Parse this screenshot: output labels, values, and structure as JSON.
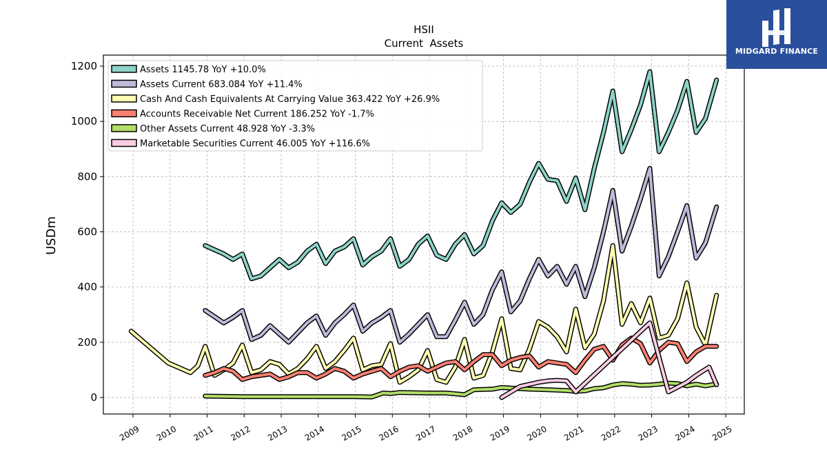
{
  "header": {
    "title": "HSII",
    "subtitle": "Current  Assets"
  },
  "brand": {
    "name": "MIDGARD FINANCE",
    "color": "#2a4f9c"
  },
  "chart_data": {
    "type": "line",
    "title": "HSII",
    "subtitle": "Current  Assets",
    "xlabel": "",
    "ylabel": "USDm",
    "xlim": [
      2008.2,
      2025.5
    ],
    "ylim": [
      -60,
      1240
    ],
    "x_ticks": [
      "2009",
      "2010",
      "2011",
      "2012",
      "2013",
      "2014",
      "2015",
      "2016",
      "2017",
      "2018",
      "2019",
      "2020",
      "2021",
      "2022",
      "2023",
      "2024",
      "2025"
    ],
    "y_ticks": [
      0,
      200,
      400,
      600,
      800,
      1000,
      1200
    ],
    "grid": true,
    "legend_position": "top-left",
    "series": [
      {
        "name": "Assets",
        "legend": "Assets  1145.78 YoY +10.0%",
        "color": "#8dd3c7",
        "points": [
          [
            2010.95,
            550
          ],
          [
            2011.45,
            520
          ],
          [
            2011.7,
            500
          ],
          [
            2011.95,
            520
          ],
          [
            2012.2,
            430
          ],
          [
            2012.45,
            440
          ],
          [
            2012.7,
            470
          ],
          [
            2012.95,
            500
          ],
          [
            2013.2,
            470
          ],
          [
            2013.45,
            490
          ],
          [
            2013.7,
            530
          ],
          [
            2013.95,
            555
          ],
          [
            2014.2,
            485
          ],
          [
            2014.45,
            530
          ],
          [
            2014.7,
            545
          ],
          [
            2014.95,
            575
          ],
          [
            2015.2,
            480
          ],
          [
            2015.45,
            510
          ],
          [
            2015.7,
            530
          ],
          [
            2015.95,
            575
          ],
          [
            2016.2,
            475
          ],
          [
            2016.45,
            500
          ],
          [
            2016.7,
            555
          ],
          [
            2016.95,
            585
          ],
          [
            2017.2,
            515
          ],
          [
            2017.45,
            500
          ],
          [
            2017.7,
            555
          ],
          [
            2017.95,
            590
          ],
          [
            2018.2,
            520
          ],
          [
            2018.45,
            550
          ],
          [
            2018.7,
            640
          ],
          [
            2018.95,
            705
          ],
          [
            2019.2,
            670
          ],
          [
            2019.45,
            700
          ],
          [
            2019.7,
            780
          ],
          [
            2019.95,
            848
          ],
          [
            2020.2,
            790
          ],
          [
            2020.45,
            785
          ],
          [
            2020.7,
            710
          ],
          [
            2020.95,
            795
          ],
          [
            2021.2,
            680
          ],
          [
            2021.45,
            830
          ],
          [
            2021.7,
            960
          ],
          [
            2021.95,
            1110
          ],
          [
            2022.2,
            890
          ],
          [
            2022.45,
            970
          ],
          [
            2022.7,
            1060
          ],
          [
            2022.95,
            1180
          ],
          [
            2023.2,
            890
          ],
          [
            2023.45,
            960
          ],
          [
            2023.7,
            1040
          ],
          [
            2023.95,
            1145
          ],
          [
            2024.2,
            960
          ],
          [
            2024.45,
            1010
          ],
          [
            2024.75,
            1150
          ]
        ]
      },
      {
        "name": "Assets Current",
        "legend": "Assets Current  683.084 YoY +11.4%",
        "color": "#bebada",
        "points": [
          [
            2010.95,
            315
          ],
          [
            2011.45,
            270
          ],
          [
            2011.7,
            290
          ],
          [
            2011.95,
            315
          ],
          [
            2012.2,
            210
          ],
          [
            2012.45,
            225
          ],
          [
            2012.7,
            260
          ],
          [
            2012.95,
            230
          ],
          [
            2013.2,
            200
          ],
          [
            2013.45,
            235
          ],
          [
            2013.7,
            270
          ],
          [
            2013.95,
            295
          ],
          [
            2014.2,
            225
          ],
          [
            2014.45,
            270
          ],
          [
            2014.7,
            300
          ],
          [
            2014.95,
            335
          ],
          [
            2015.2,
            240
          ],
          [
            2015.45,
            270
          ],
          [
            2015.7,
            290
          ],
          [
            2015.95,
            315
          ],
          [
            2016.2,
            200
          ],
          [
            2016.45,
            230
          ],
          [
            2016.7,
            265
          ],
          [
            2016.95,
            300
          ],
          [
            2017.2,
            220
          ],
          [
            2017.45,
            220
          ],
          [
            2017.7,
            280
          ],
          [
            2017.95,
            345
          ],
          [
            2018.2,
            265
          ],
          [
            2018.45,
            300
          ],
          [
            2018.7,
            390
          ],
          [
            2018.95,
            455
          ],
          [
            2019.2,
            310
          ],
          [
            2019.45,
            350
          ],
          [
            2019.7,
            430
          ],
          [
            2019.95,
            500
          ],
          [
            2020.2,
            440
          ],
          [
            2020.45,
            475
          ],
          [
            2020.7,
            410
          ],
          [
            2020.95,
            475
          ],
          [
            2021.2,
            365
          ],
          [
            2021.45,
            470
          ],
          [
            2021.7,
            600
          ],
          [
            2021.95,
            750
          ],
          [
            2022.2,
            530
          ],
          [
            2022.45,
            620
          ],
          [
            2022.7,
            720
          ],
          [
            2022.95,
            830
          ],
          [
            2023.2,
            440
          ],
          [
            2023.45,
            510
          ],
          [
            2023.7,
            600
          ],
          [
            2023.95,
            695
          ],
          [
            2024.2,
            505
          ],
          [
            2024.45,
            560
          ],
          [
            2024.75,
            690
          ]
        ]
      },
      {
        "name": "Cash And Cash Equivalents At Carrying Value",
        "legend": "Cash And Cash Equivalents At Carrying Value  363.422 YoY +26.9%",
        "color": "#ffffb3",
        "points": [
          [
            2008.95,
            240
          ],
          [
            2009.95,
            125
          ],
          [
            2010.55,
            90
          ],
          [
            2010.75,
            115
          ],
          [
            2010.95,
            185
          ],
          [
            2011.2,
            80
          ],
          [
            2011.45,
            100
          ],
          [
            2011.7,
            125
          ],
          [
            2011.95,
            190
          ],
          [
            2012.2,
            90
          ],
          [
            2012.45,
            100
          ],
          [
            2012.7,
            130
          ],
          [
            2012.95,
            120
          ],
          [
            2013.2,
            85
          ],
          [
            2013.45,
            105
          ],
          [
            2013.7,
            140
          ],
          [
            2013.95,
            185
          ],
          [
            2014.2,
            105
          ],
          [
            2014.45,
            130
          ],
          [
            2014.7,
            170
          ],
          [
            2014.95,
            215
          ],
          [
            2015.2,
            100
          ],
          [
            2015.45,
            115
          ],
          [
            2015.7,
            120
          ],
          [
            2015.95,
            195
          ],
          [
            2016.2,
            55
          ],
          [
            2016.45,
            75
          ],
          [
            2016.7,
            100
          ],
          [
            2016.95,
            170
          ],
          [
            2017.2,
            65
          ],
          [
            2017.45,
            55
          ],
          [
            2017.7,
            110
          ],
          [
            2017.95,
            210
          ],
          [
            2018.2,
            70
          ],
          [
            2018.45,
            80
          ],
          [
            2018.7,
            165
          ],
          [
            2018.95,
            285
          ],
          [
            2019.2,
            105
          ],
          [
            2019.45,
            100
          ],
          [
            2019.7,
            175
          ],
          [
            2019.95,
            275
          ],
          [
            2020.2,
            255
          ],
          [
            2020.45,
            220
          ],
          [
            2020.7,
            165
          ],
          [
            2020.95,
            320
          ],
          [
            2021.2,
            180
          ],
          [
            2021.45,
            230
          ],
          [
            2021.7,
            350
          ],
          [
            2021.95,
            550
          ],
          [
            2022.2,
            265
          ],
          [
            2022.45,
            340
          ],
          [
            2022.7,
            270
          ],
          [
            2022.95,
            360
          ],
          [
            2023.2,
            215
          ],
          [
            2023.45,
            225
          ],
          [
            2023.7,
            285
          ],
          [
            2023.95,
            415
          ],
          [
            2024.2,
            255
          ],
          [
            2024.45,
            190
          ],
          [
            2024.75,
            370
          ]
        ]
      },
      {
        "name": "Accounts Receivable Net Current",
        "legend": "Accounts Receivable Net Current  186.252 YoY -1.7%",
        "color": "#fb8072",
        "points": [
          [
            2010.95,
            80
          ],
          [
            2011.2,
            90
          ],
          [
            2011.45,
            105
          ],
          [
            2011.7,
            95
          ],
          [
            2011.95,
            65
          ],
          [
            2012.2,
            75
          ],
          [
            2012.45,
            80
          ],
          [
            2012.7,
            85
          ],
          [
            2012.95,
            65
          ],
          [
            2013.2,
            75
          ],
          [
            2013.45,
            90
          ],
          [
            2013.7,
            90
          ],
          [
            2013.95,
            70
          ],
          [
            2014.2,
            85
          ],
          [
            2014.45,
            105
          ],
          [
            2014.7,
            95
          ],
          [
            2014.95,
            70
          ],
          [
            2015.2,
            85
          ],
          [
            2015.45,
            95
          ],
          [
            2015.7,
            105
          ],
          [
            2015.95,
            75
          ],
          [
            2016.2,
            95
          ],
          [
            2016.45,
            110
          ],
          [
            2016.7,
            115
          ],
          [
            2016.95,
            95
          ],
          [
            2017.2,
            110
          ],
          [
            2017.45,
            125
          ],
          [
            2017.7,
            130
          ],
          [
            2017.95,
            100
          ],
          [
            2018.2,
            130
          ],
          [
            2018.45,
            155
          ],
          [
            2018.7,
            155
          ],
          [
            2018.95,
            115
          ],
          [
            2019.2,
            135
          ],
          [
            2019.45,
            145
          ],
          [
            2019.7,
            150
          ],
          [
            2019.95,
            110
          ],
          [
            2020.2,
            130
          ],
          [
            2020.45,
            125
          ],
          [
            2020.7,
            120
          ],
          [
            2020.95,
            90
          ],
          [
            2021.2,
            135
          ],
          [
            2021.45,
            175
          ],
          [
            2021.7,
            185
          ],
          [
            2021.95,
            135
          ],
          [
            2022.2,
            190
          ],
          [
            2022.45,
            215
          ],
          [
            2022.7,
            195
          ],
          [
            2022.95,
            125
          ],
          [
            2023.2,
            170
          ],
          [
            2023.45,
            200
          ],
          [
            2023.7,
            195
          ],
          [
            2023.95,
            130
          ],
          [
            2024.2,
            165
          ],
          [
            2024.45,
            185
          ],
          [
            2024.75,
            185
          ]
        ]
      },
      {
        "name": "Other Assets Current",
        "legend": "Other Assets Current  48.928 YoY -3.3%",
        "color": "#b3de69",
        "points": [
          [
            2010.95,
            5
          ],
          [
            2011.95,
            3
          ],
          [
            2012.95,
            3
          ],
          [
            2013.95,
            3
          ],
          [
            2014.95,
            3
          ],
          [
            2015.45,
            2
          ],
          [
            2015.75,
            16
          ],
          [
            2015.95,
            14
          ],
          [
            2016.2,
            18
          ],
          [
            2016.95,
            16
          ],
          [
            2017.45,
            16
          ],
          [
            2017.95,
            10
          ],
          [
            2018.2,
            28
          ],
          [
            2018.7,
            30
          ],
          [
            2018.95,
            36
          ],
          [
            2019.7,
            30
          ],
          [
            2020.2,
            28
          ],
          [
            2020.7,
            25
          ],
          [
            2020.95,
            22
          ],
          [
            2021.2,
            24
          ],
          [
            2021.45,
            32
          ],
          [
            2021.7,
            35
          ],
          [
            2021.95,
            45
          ],
          [
            2022.2,
            50
          ],
          [
            2022.45,
            48
          ],
          [
            2022.7,
            44
          ],
          [
            2022.95,
            45
          ],
          [
            2023.2,
            48
          ],
          [
            2023.45,
            52
          ],
          [
            2023.7,
            50
          ],
          [
            2023.95,
            42
          ],
          [
            2024.2,
            48
          ],
          [
            2024.45,
            42
          ],
          [
            2024.75,
            49
          ]
        ]
      },
      {
        "name": "Marketable Securities Current",
        "legend": "Marketable Securities Current  46.005 YoY +116.6%",
        "color": "#fccde5",
        "points": [
          [
            2018.95,
            0
          ],
          [
            2019.45,
            40
          ],
          [
            2019.95,
            55
          ],
          [
            2020.2,
            60
          ],
          [
            2020.45,
            62
          ],
          [
            2020.7,
            60
          ],
          [
            2020.95,
            20
          ],
          [
            2022.95,
            270
          ],
          [
            2023.45,
            20
          ],
          [
            2023.95,
            55
          ],
          [
            2024.2,
            80
          ],
          [
            2024.55,
            110
          ],
          [
            2024.75,
            46
          ]
        ]
      }
    ]
  }
}
